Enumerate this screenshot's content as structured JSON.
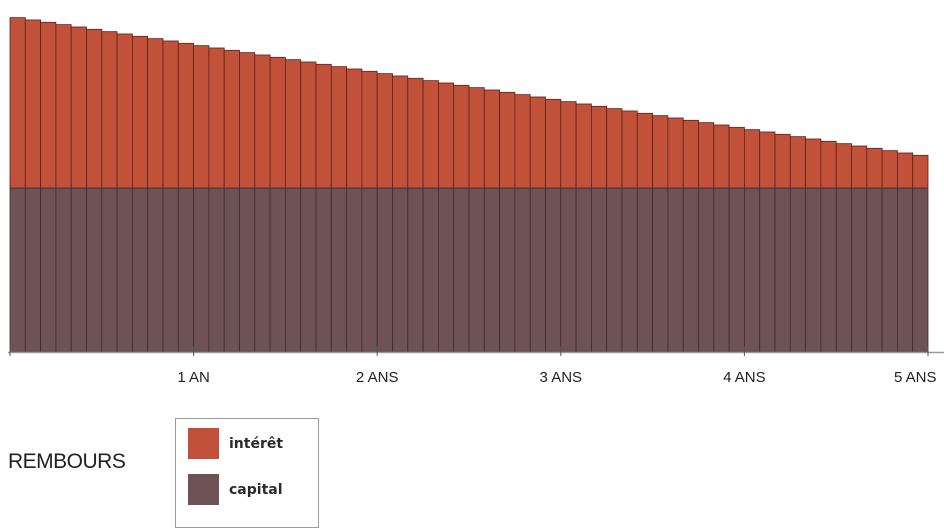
{
  "chart_data": {
    "type": "bar",
    "stacked": true,
    "months": 60,
    "x_ticks": [
      {
        "month": 12,
        "label": "1 AN"
      },
      {
        "month": 24,
        "label": "2 ANS"
      },
      {
        "month": 36,
        "label": "3 ANS"
      },
      {
        "month": 48,
        "label": "4 ANS"
      },
      {
        "month": 60,
        "label": "5 ANS"
      }
    ],
    "series": [
      {
        "name": "capital",
        "color": "#6f5255",
        "constant": 100
      },
      {
        "name": "intérêt",
        "color": "#c2513a",
        "start": 104,
        "end": 20
      }
    ],
    "ylim": [
      0,
      205
    ],
    "grid": false,
    "legend": "bottom-left",
    "side_label": "REMBOURS"
  }
}
